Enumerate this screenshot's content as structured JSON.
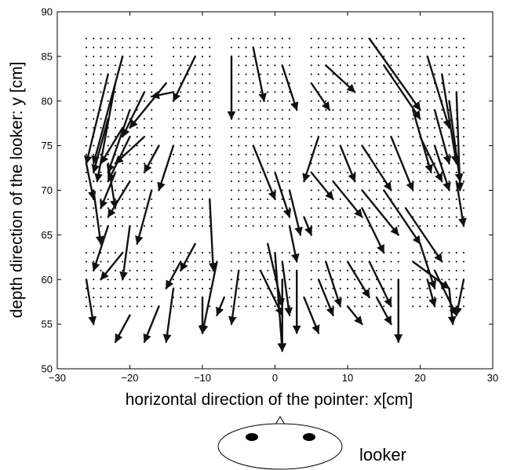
{
  "chart_data": {
    "type": "quiver",
    "xlabel": "horizontal direction of the pointer: x[cm]",
    "ylabel": "depth direction of the looker: y [cm]",
    "xlim": [
      -30,
      30
    ],
    "ylim": [
      50,
      90
    ],
    "xticks": [
      "−30",
      "−20",
      "−10",
      "0",
      "10",
      "20",
      "30"
    ],
    "yticks": [
      "50",
      "55",
      "60",
      "65",
      "70",
      "75",
      "80",
      "85",
      "90"
    ],
    "grid": false,
    "sample_points": {
      "x_range": [
        -26,
        26
      ],
      "x_step": 1,
      "y_range": [
        57,
        87
      ],
      "y_step": 1,
      "x_gaps": [
        [
          -16,
          -15
        ],
        [
          -8,
          -7
        ],
        [
          3,
          4
        ],
        [
          18,
          18
        ]
      ],
      "y_gaps": [
        [
          65,
          64
        ]
      ]
    },
    "vectors": [
      {
        "x": -21,
        "y": 85,
        "dx": -4,
        "dy": -12
      },
      {
        "x": -23,
        "y": 83,
        "dx": -3,
        "dy": -10
      },
      {
        "x": -22,
        "y": 82,
        "dx": -2.5,
        "dy": -11
      },
      {
        "x": -20,
        "y": 79,
        "dx": -3,
        "dy": -7
      },
      {
        "x": -18,
        "y": 81,
        "dx": -3,
        "dy": -5
      },
      {
        "x": -15,
        "y": 82,
        "dx": -5,
        "dy": -5
      },
      {
        "x": -14,
        "y": 81,
        "dx": -3,
        "dy": -0.5
      },
      {
        "x": -11,
        "y": 85,
        "dx": -3,
        "dy": -5
      },
      {
        "x": -6,
        "y": 85,
        "dx": 0,
        "dy": -7
      },
      {
        "x": -3,
        "y": 86,
        "dx": 1.5,
        "dy": -6
      },
      {
        "x": 1,
        "y": 84,
        "dx": 2,
        "dy": -5
      },
      {
        "x": 5,
        "y": 82,
        "dx": 2.5,
        "dy": -3
      },
      {
        "x": 7,
        "y": 84,
        "dx": 4,
        "dy": -3
      },
      {
        "x": 13,
        "y": 87,
        "dx": 7,
        "dy": -8
      },
      {
        "x": 15,
        "y": 84,
        "dx": 5,
        "dy": -6
      },
      {
        "x": 21,
        "y": 85,
        "dx": 3,
        "dy": -8
      },
      {
        "x": 23,
        "y": 83,
        "dx": 2,
        "dy": -10
      },
      {
        "x": 25,
        "y": 81,
        "dx": 0.5,
        "dy": -11
      },
      {
        "x": 24,
        "y": 80,
        "dx": 1.5,
        "dy": -9
      },
      {
        "x": 22,
        "y": 79,
        "dx": 2,
        "dy": -6
      },
      {
        "x": 19,
        "y": 79,
        "dx": 2.5,
        "dy": -7
      },
      {
        "x": -23,
        "y": 78,
        "dx": -2,
        "dy": -6
      },
      {
        "x": -21,
        "y": 77,
        "dx": -3,
        "dy": -4
      },
      {
        "x": -20,
        "y": 76,
        "dx": -3,
        "dy": -5
      },
      {
        "x": -18,
        "y": 76,
        "dx": -4,
        "dy": -3
      },
      {
        "x": -16,
        "y": 75,
        "dx": -2,
        "dy": -3
      },
      {
        "x": -14,
        "y": 75,
        "dx": -2,
        "dy": -5
      },
      {
        "x": 6,
        "y": 76,
        "dx": -2,
        "dy": -5
      },
      {
        "x": 9,
        "y": 75,
        "dx": 2,
        "dy": -4
      },
      {
        "x": 12,
        "y": 75,
        "dx": 4,
        "dy": -5
      },
      {
        "x": 16,
        "y": 76,
        "dx": 3,
        "dy": -6
      },
      {
        "x": 20,
        "y": 76,
        "dx": 3,
        "dy": -5
      },
      {
        "x": 22,
        "y": 75,
        "dx": 2,
        "dy": -5
      },
      {
        "x": -26,
        "y": 73,
        "dx": 1,
        "dy": -4
      },
      {
        "x": -23,
        "y": 73,
        "dx": 1,
        "dy": -5
      },
      {
        "x": -22,
        "y": 72,
        "dx": -2,
        "dy": -4
      },
      {
        "x": -20,
        "y": 71,
        "dx": -3,
        "dy": -4
      },
      {
        "x": -17,
        "y": 70,
        "dx": -2,
        "dy": -6
      },
      {
        "x": -3,
        "y": 75,
        "dx": 3,
        "dy": -6
      },
      {
        "x": 0,
        "y": 72,
        "dx": 2,
        "dy": -5
      },
      {
        "x": 2,
        "y": 70,
        "dx": 1.5,
        "dy": -5
      },
      {
        "x": 5,
        "y": 72,
        "dx": 3,
        "dy": -3
      },
      {
        "x": 8,
        "y": 71,
        "dx": 4,
        "dy": -4
      },
      {
        "x": 12,
        "y": 70,
        "dx": 5,
        "dy": -5
      },
      {
        "x": 15,
        "y": 70,
        "dx": 5,
        "dy": -6
      },
      {
        "x": 18,
        "y": 68,
        "dx": 5,
        "dy": -6
      },
      {
        "x": 25,
        "y": 71,
        "dx": 1,
        "dy": -5
      },
      {
        "x": -25,
        "y": 70,
        "dx": 1,
        "dy": -6
      },
      {
        "x": -23,
        "y": 66,
        "dx": -2,
        "dy": -5
      },
      {
        "x": -9,
        "y": 69,
        "dx": 0.5,
        "dy": -8
      },
      {
        "x": -21,
        "y": 63,
        "dx": -3,
        "dy": -3
      },
      {
        "x": 2,
        "y": 66,
        "dx": 1,
        "dy": -4
      },
      {
        "x": 4,
        "y": 67,
        "dx": 1,
        "dy": -2
      },
      {
        "x": 12,
        "y": 68,
        "dx": 3,
        "dy": -5
      },
      {
        "x": 20,
        "y": 64,
        "dx": 2,
        "dy": -5
      },
      {
        "x": -20,
        "y": 66,
        "dx": -1,
        "dy": -6
      },
      {
        "x": -11,
        "y": 64,
        "dx": -2,
        "dy": -3
      },
      {
        "x": -13,
        "y": 62,
        "dx": -2,
        "dy": -3
      },
      {
        "x": -1,
        "y": 64,
        "dx": 2,
        "dy": -7
      },
      {
        "x": 1,
        "y": 62,
        "dx": 1,
        "dy": -6
      },
      {
        "x": 3,
        "y": 61,
        "dx": 0,
        "dy": -7
      },
      {
        "x": 7,
        "y": 62,
        "dx": 2,
        "dy": -5
      },
      {
        "x": 10,
        "y": 62,
        "dx": 3,
        "dy": -4
      },
      {
        "x": 13,
        "y": 62,
        "dx": 3,
        "dy": -5
      },
      {
        "x": 19,
        "y": 62,
        "dx": 5,
        "dy": -3
      },
      {
        "x": 22,
        "y": 61,
        "dx": 3,
        "dy": -5
      },
      {
        "x": 26,
        "y": 60,
        "dx": -1,
        "dy": -4
      },
      {
        "x": -26,
        "y": 60,
        "dx": 1,
        "dy": -5
      },
      {
        "x": -20,
        "y": 56,
        "dx": -2,
        "dy": -3
      },
      {
        "x": -16,
        "y": 57,
        "dx": -2,
        "dy": -4
      },
      {
        "x": -14,
        "y": 59,
        "dx": -1,
        "dy": -6
      },
      {
        "x": -8,
        "y": 62,
        "dx": -2,
        "dy": -8
      },
      {
        "x": -5,
        "y": 61,
        "dx": -1,
        "dy": -6
      },
      {
        "x": -2,
        "y": 61,
        "dx": 3,
        "dy": -5
      },
      {
        "x": 0,
        "y": 63,
        "dx": 1,
        "dy": -11
      },
      {
        "x": 1,
        "y": 60,
        "dx": 0,
        "dy": -8
      },
      {
        "x": 4,
        "y": 58,
        "dx": 2,
        "dy": -4
      },
      {
        "x": 6,
        "y": 60,
        "dx": 2,
        "dy": -4
      },
      {
        "x": 10,
        "y": 57,
        "dx": 2,
        "dy": -2
      },
      {
        "x": 14,
        "y": 58,
        "dx": 2,
        "dy": -3
      },
      {
        "x": 17,
        "y": 60,
        "dx": 0,
        "dy": -7
      },
      {
        "x": 21,
        "y": 60,
        "dx": 1,
        "dy": -3
      },
      {
        "x": 24,
        "y": 59,
        "dx": 0.5,
        "dy": -4
      },
      {
        "x": -10,
        "y": 58,
        "dx": 0,
        "dy": -4
      },
      {
        "x": -7,
        "y": 58,
        "dx": -1,
        "dy": -2
      }
    ]
  },
  "annotation": {
    "label": "looker"
  }
}
